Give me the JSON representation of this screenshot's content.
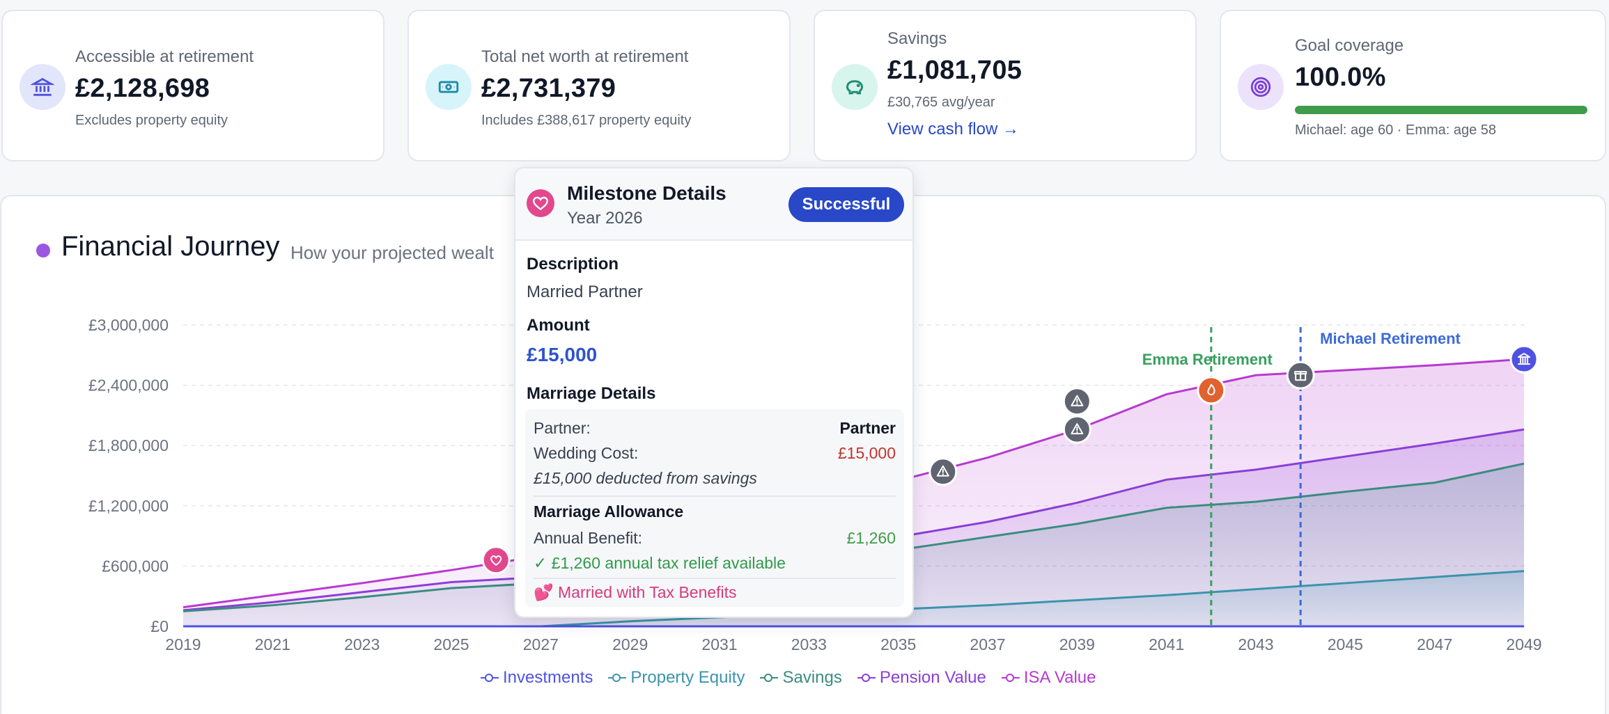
{
  "colors": {
    "investments": "#4f52e0",
    "property": "#3b94ac",
    "savings": "#3b8c7f",
    "pension": "#8a3fd6",
    "isa": "#b73ad0",
    "accent": "#2848c8",
    "success": "#3f9c4a",
    "danger": "#c0362c",
    "pink": "#d63a7d"
  },
  "cards": [
    {
      "label": "Accessible at retirement",
      "value": "£2,128,698",
      "sub": "Excludes property equity",
      "icon": "bank-icon"
    },
    {
      "label": "Total net worth at retirement",
      "value": "£2,731,379",
      "sub": "Includes £388,617 property equity",
      "icon": "banknote-icon"
    },
    {
      "label": "Savings",
      "value": "£1,081,705",
      "sub": "£30,765 avg/year",
      "link": "View cash flow →",
      "icon": "piggy-bank-icon"
    },
    {
      "label": "Goal coverage",
      "value": "100.0%",
      "progress": 1.0,
      "sub": "Michael: age 60 · Emma: age 58",
      "icon": "target-icon"
    }
  ],
  "journey": {
    "title": "Financial Journey",
    "subtitle": "How your projected wealt"
  },
  "chart_data": {
    "type": "area",
    "x": [
      2019,
      2021,
      2023,
      2025,
      2027,
      2029,
      2031,
      2033,
      2035,
      2037,
      2039,
      2041,
      2043,
      2045,
      2047,
      2049
    ],
    "x_ticks": [
      "2019",
      "2021",
      "2023",
      "2025",
      "2027",
      "2029",
      "2031",
      "2033",
      "2035",
      "2037",
      "2039",
      "2041",
      "2043",
      "2045",
      "2047",
      "2049"
    ],
    "y_ticks": [
      "£0",
      "£600,000",
      "£1,200,000",
      "£1,800,000",
      "£2,400,000",
      "£3,000,000"
    ],
    "ylim": [
      0,
      3000000
    ],
    "grid": true,
    "legend_position": "bottom",
    "series": [
      {
        "name": "Investments",
        "key": "investments",
        "values": [
          0,
          0,
          0,
          0,
          0,
          0,
          0,
          0,
          0,
          0,
          0,
          0,
          0,
          0,
          0,
          0
        ]
      },
      {
        "name": "Property Equity",
        "key": "property",
        "values": [
          0,
          0,
          0,
          0,
          0,
          50000,
          90000,
          130000,
          170000,
          210000,
          260000,
          310000,
          370000,
          430000,
          490000,
          550000
        ]
      },
      {
        "name": "Savings",
        "key": "savings",
        "values": [
          150000,
          210000,
          290000,
          380000,
          430000,
          470000,
          540000,
          640000,
          760000,
          890000,
          1020000,
          1180000,
          1240000,
          1340000,
          1430000,
          1620000
        ]
      },
      {
        "name": "Pension Value",
        "key": "pension",
        "values": [
          160000,
          240000,
          340000,
          440000,
          490000,
          560000,
          650000,
          760000,
          890000,
          1040000,
          1230000,
          1460000,
          1560000,
          1690000,
          1820000,
          1960000
        ]
      },
      {
        "name": "ISA Value",
        "key": "isa",
        "values": [
          190000,
          310000,
          430000,
          560000,
          700000,
          850000,
          1040000,
          1240000,
          1450000,
          1680000,
          1960000,
          2310000,
          2500000,
          2550000,
          2600000,
          2660000
        ]
      }
    ],
    "retirement_lines": [
      {
        "label": "Emma Retirement",
        "year": 2042,
        "color": "#37a05e"
      },
      {
        "label": "Michael Retirement",
        "year": 2044,
        "color": "#3c6ad8"
      }
    ],
    "markers": [
      {
        "year": 2026,
        "value": 660000,
        "icon": "heart-icon",
        "color": "#e2488d"
      },
      {
        "year": 2036,
        "value": 1540000,
        "icon": "warning-icon",
        "color": "#5f6470"
      },
      {
        "year": 2039,
        "value": 2240000,
        "icon": "warning-icon",
        "color": "#5f6470"
      },
      {
        "year": 2039,
        "value": 1960000,
        "icon": "warning-icon",
        "color": "#5f6470"
      },
      {
        "year": 2042,
        "value": 2350000,
        "icon": "flame-icon",
        "color": "#e0622e"
      },
      {
        "year": 2044,
        "value": 2500000,
        "icon": "gift-icon",
        "color": "#5f6470"
      },
      {
        "year": 2049,
        "value": 2660000,
        "icon": "bank-icon",
        "color": "#4f52e0"
      }
    ]
  },
  "legend": [
    {
      "label": "Investments",
      "key": "investments"
    },
    {
      "label": "Property Equity",
      "key": "property"
    },
    {
      "label": "Savings",
      "key": "savings"
    },
    {
      "label": "Pension Value",
      "key": "pension"
    },
    {
      "label": "ISA Value",
      "key": "isa"
    }
  ],
  "tooltip": {
    "title": "Milestone Details",
    "year": "Year 2026",
    "status": "Successful",
    "icon": "heart-icon",
    "description_label": "Description",
    "description": "Married Partner",
    "amount_label": "Amount",
    "amount": "£15,000",
    "marriage_label": "Marriage Details",
    "partner_label": "Partner:",
    "partner_value": "Partner",
    "wedding_label": "Wedding Cost:",
    "wedding_value": "£15,000",
    "deducted_note": "£15,000 deducted from savings",
    "allowance_label": "Marriage Allowance",
    "benefit_label": "Annual Benefit:",
    "benefit_value": "£1,260",
    "relief_note": "✓ £1,260 annual tax relief available",
    "married_note": "💕 Married with Tax Benefits"
  }
}
